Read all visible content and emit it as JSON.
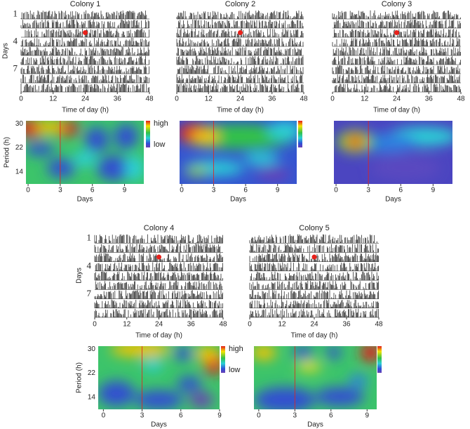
{
  "chart_data": [
    {
      "type": "actogram",
      "title": "Colony 1",
      "xlabel": "Time of day (h)",
      "ylabel": "Days",
      "xlim": [
        0,
        48
      ],
      "xticks": [
        0,
        12,
        24,
        36,
        48
      ],
      "ylim": [
        0.5,
        9.5
      ],
      "yticks": [
        1,
        4,
        7
      ],
      "marker_x": 24,
      "marker_day": 3
    },
    {
      "type": "actogram",
      "title": "Colony 2",
      "xlabel": "Time of day (h)",
      "xlim": [
        0,
        48
      ],
      "xticks": [
        0,
        12,
        24,
        36,
        48
      ],
      "ylim": [
        0.5,
        9.5
      ],
      "marker_x": 24,
      "marker_day": 3
    },
    {
      "type": "actogram",
      "title": "Colony 3",
      "xlabel": "Time of day (h)",
      "xlim": [
        0,
        48
      ],
      "xticks": [
        0,
        12,
        24,
        36,
        48
      ],
      "ylim": [
        0.5,
        9.5
      ],
      "marker_x": 24,
      "marker_day": 3
    },
    {
      "type": "heatmap",
      "xlabel": "Days",
      "ylabel": "Period (h)",
      "xlim": [
        -0.2,
        10.8
      ],
      "xticks": [
        0,
        3,
        6,
        9
      ],
      "ylim": [
        10,
        31
      ],
      "yticks": [
        14,
        22,
        30
      ],
      "marker_x": 3,
      "colorbar_labels": [
        "high",
        "low"
      ]
    },
    {
      "type": "heatmap",
      "xlabel": "Days",
      "xlim": [
        -0.2,
        10.8
      ],
      "xticks": [
        0,
        3,
        6,
        9
      ],
      "ylim": [
        10,
        31
      ],
      "marker_x": 3
    },
    {
      "type": "heatmap",
      "xlabel": "Days",
      "xlim": [
        -0.2,
        10.8
      ],
      "xticks": [
        0,
        3,
        6,
        9
      ],
      "ylim": [
        10,
        31
      ],
      "marker_x": 3
    },
    {
      "type": "actogram",
      "title": "Colony 4",
      "xlabel": "Time of day (h)",
      "ylabel": "Days",
      "xlim": [
        0,
        48
      ],
      "xticks": [
        0,
        12,
        24,
        36,
        48
      ],
      "ylim": [
        0.5,
        9.5
      ],
      "yticks": [
        1,
        4,
        7
      ],
      "marker_x": 24,
      "marker_day": 3
    },
    {
      "type": "actogram",
      "title": "Colony 5",
      "xlabel": "Time of day (h)",
      "xlim": [
        0,
        48
      ],
      "xticks": [
        0,
        12,
        24,
        36,
        48
      ],
      "ylim": [
        0.5,
        9.5
      ],
      "marker_x": 24,
      "marker_day": 3
    },
    {
      "type": "heatmap",
      "xlabel": "Days",
      "ylabel": "Period (h)",
      "xlim": [
        -0.4,
        9
      ],
      "xticks": [
        0,
        3,
        6,
        9
      ],
      "ylim": [
        10,
        31
      ],
      "yticks": [
        14,
        22,
        30
      ],
      "marker_x": 3,
      "colorbar_labels": [
        "high",
        "low"
      ]
    },
    {
      "type": "heatmap",
      "xlabel": "Days",
      "xlim": [
        -0.4,
        9.8
      ],
      "xticks": [
        0,
        3,
        6,
        9
      ],
      "ylim": [
        10,
        31
      ],
      "marker_x": 3
    }
  ]
}
